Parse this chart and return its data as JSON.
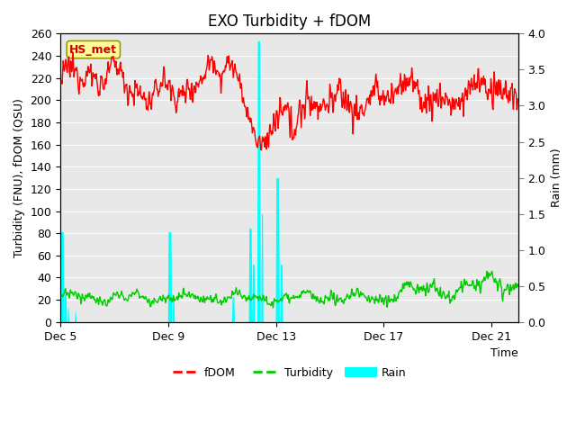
{
  "title": "EXO Turbidity + fDOM",
  "xlabel": "Time",
  "ylabel_left": "Turbidity (FNU), fDOM (QSU)",
  "ylabel_right": "Rain (mm)",
  "ylim_left": [
    0,
    260
  ],
  "ylim_right": [
    0,
    4.0
  ],
  "yticks_left": [
    0,
    20,
    40,
    60,
    80,
    100,
    120,
    140,
    160,
    180,
    200,
    220,
    240,
    260
  ],
  "yticks_right": [
    0.0,
    0.5,
    1.0,
    1.5,
    2.0,
    2.5,
    3.0,
    3.5,
    4.0
  ],
  "xlim": [
    0,
    17
  ],
  "xtick_positions": [
    0,
    4,
    8,
    12,
    16
  ],
  "xtick_labels": [
    "Dec 5",
    "Dec 9",
    "Dec 13",
    "Dec 17",
    "Dec 21"
  ],
  "plot_bg_color": "#e8e8e8",
  "fdom_color": "#ff0000",
  "turbidity_color": "#00cc00",
  "rain_color": "#00ffff",
  "annotation_text": "HS_met",
  "annotation_bg": "#ffff99",
  "annotation_edge": "#999900",
  "title_fontsize": 12,
  "axis_fontsize": 9,
  "tick_fontsize": 9,
  "legend_fontsize": 9,
  "grid_color": "#ffffff",
  "grid_alpha": 1.0,
  "fdom_lw": 1.0,
  "turbidity_lw": 1.0
}
